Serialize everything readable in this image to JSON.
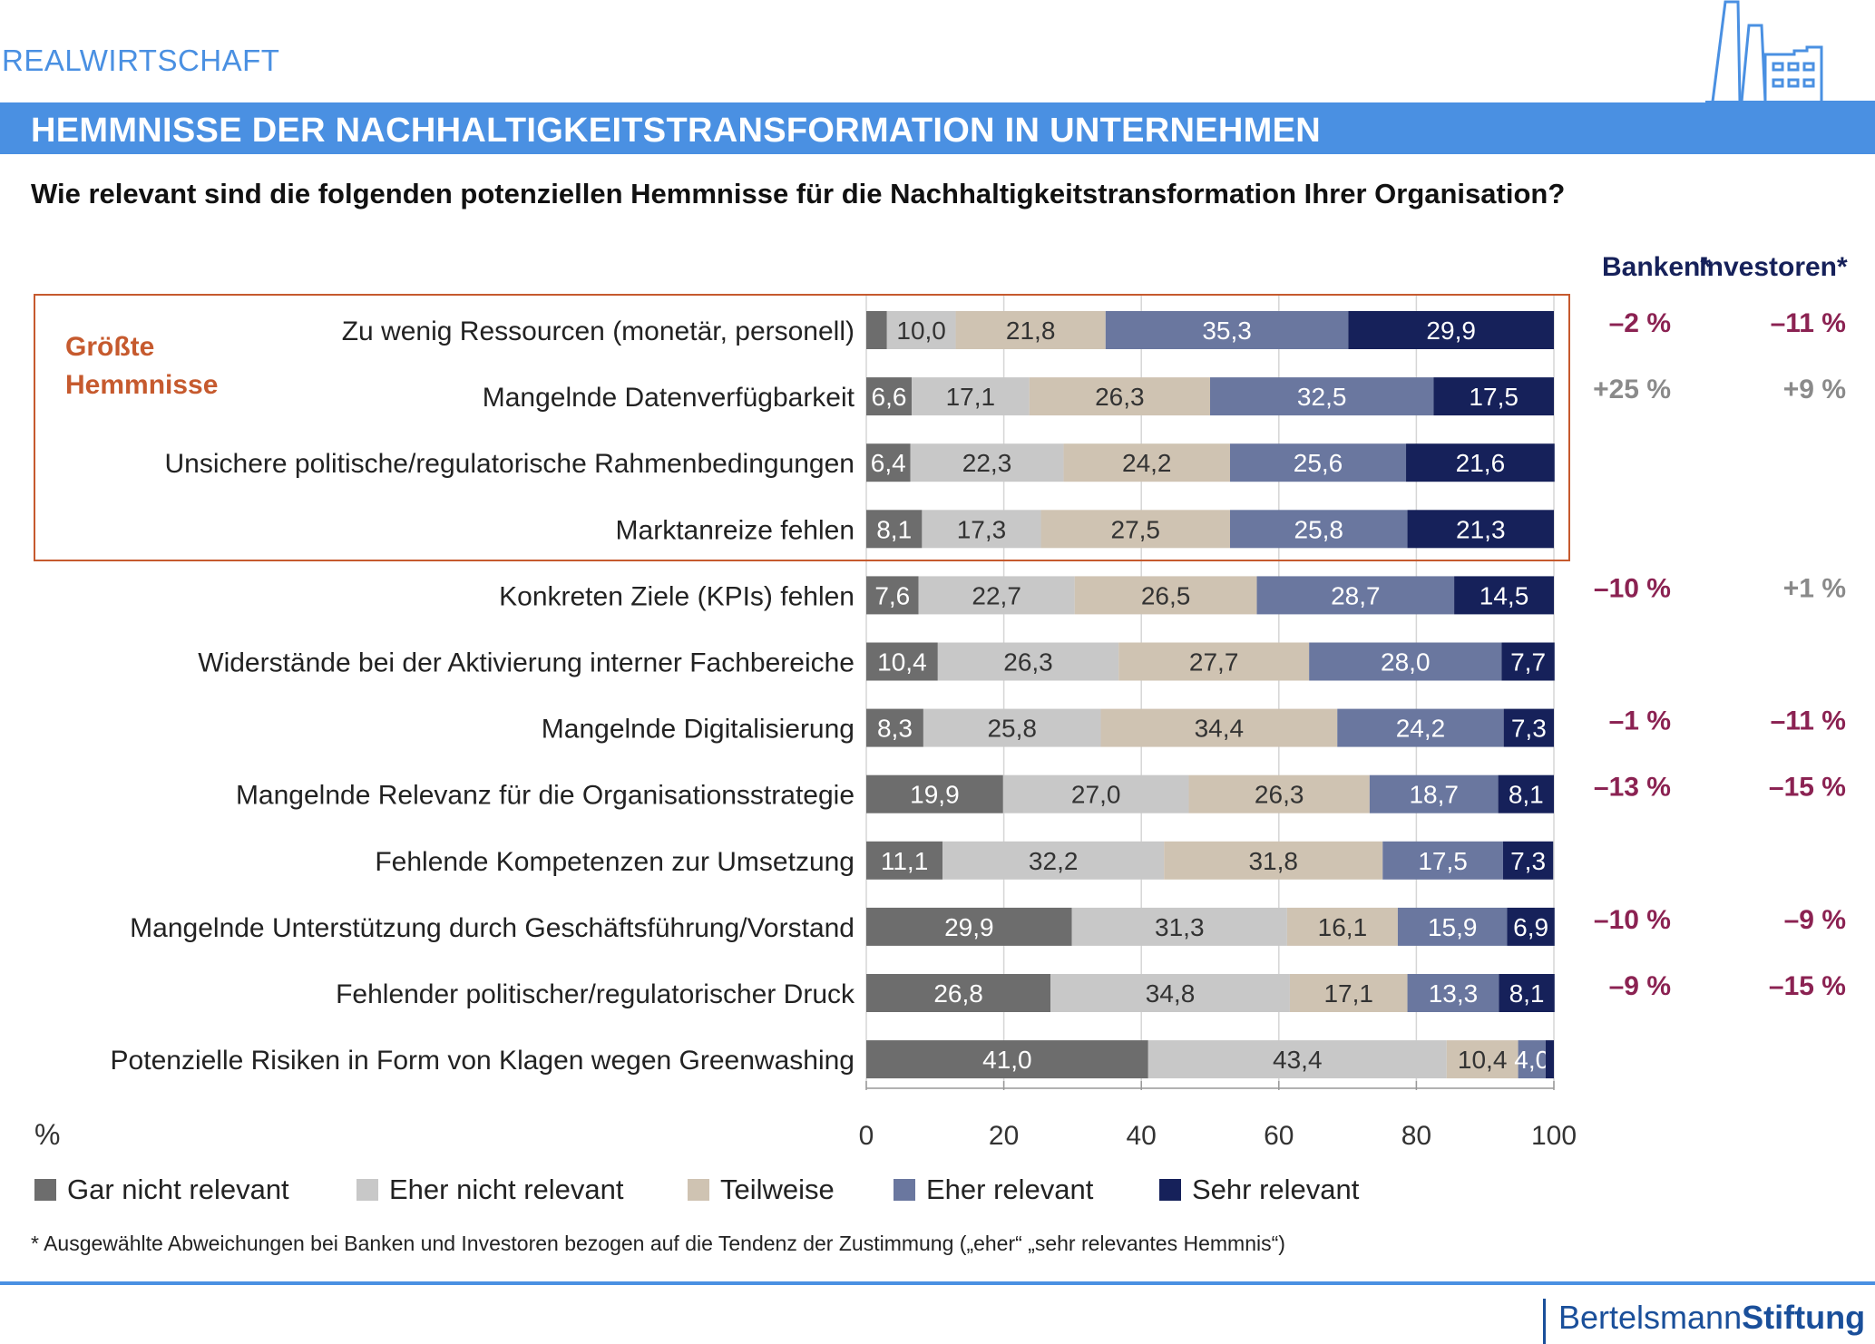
{
  "header": {
    "section": "REALWIRTSCHAFT",
    "title": "HEMMNISSE DER NACHHALTIGKEITSTRANSFORMATION IN UNTERNEHMEN",
    "question": "Wie relevant sind die folgenden potenziellen Hemmnisse für die Nachhaltigkeitstransformation Ihrer Organisation?"
  },
  "highlight": {
    "label_line1": "Größte",
    "label_line2": "Hemmnisse",
    "color": "#c65a2e"
  },
  "deviation_headers": {
    "banks": "Banken*",
    "investors": "Investoren*"
  },
  "footnote": "* Ausgewählte Abweichungen bei Banken und Investoren bezogen auf die Tendenz der Zustimmung („eher“ „sehr relevantes Hemmnis“)",
  "brand": {
    "part1": "Bertelsmann",
    "part2": "Stiftung"
  },
  "colors": {
    "gar_nicht": "#6d6d6d",
    "eher_nicht": "#c8c8c8",
    "teilweise": "#cfc3b2",
    "eher": "#6a779f",
    "sehr": "#16215a",
    "negative": "#8b2252",
    "positive": "#8a8a8a",
    "accent_blue": "#4a90e2"
  },
  "chart_data": {
    "type": "bar",
    "orientation": "horizontal",
    "stacked": true,
    "unit_label": "%",
    "xlim": [
      0,
      100
    ],
    "xticks": [
      "0",
      "20",
      "40",
      "60",
      "80",
      "100"
    ],
    "legend_position": "bottom",
    "grid": true,
    "categories": [
      "Zu wenig Ressourcen (monetär, personell)",
      "Mangelnde Datenverfügbarkeit",
      "Unsichere politische/regulatorische Rahmenbedingungen",
      "Marktanreize fehlen",
      "Konkreten Ziele (KPIs) fehlen",
      "Widerstände bei der Aktivierung interner Fachbereiche",
      "Mangelnde Digitalisierung",
      "Mangelnde Relevanz für die Organisationsstrategie",
      "Fehlende Kompetenzen zur Umsetzung",
      "Mangelnde Unterstützung durch Geschäftsführung/Vorstand",
      "Fehlender politischer/regulatorischer Druck",
      "Potenzielle Risiken in Form von Klagen wegen Greenwashing"
    ],
    "series": [
      {
        "name": "Gar nicht relevant",
        "color": "#6d6d6d",
        "values": [
          3.0,
          6.6,
          6.4,
          8.1,
          7.6,
          10.4,
          8.3,
          19.9,
          11.1,
          29.9,
          26.8,
          41.0
        ],
        "labels": [
          "",
          "6,6",
          "6,4",
          "8,1",
          "7,6",
          "10,4",
          "8,3",
          "19,9",
          "11,1",
          "29,9",
          "26,8",
          "41,0"
        ],
        "label_color": "#ffffff"
      },
      {
        "name": "Eher nicht relevant",
        "color": "#c8c8c8",
        "values": [
          10.0,
          17.1,
          22.3,
          17.3,
          22.7,
          26.3,
          25.8,
          27.0,
          32.2,
          31.3,
          34.8,
          43.4
        ],
        "labels": [
          "10,0",
          "17,1",
          "22,3",
          "17,3",
          "22,7",
          "26,3",
          "25,8",
          "27,0",
          "32,2",
          "31,3",
          "34,8",
          "43,4"
        ],
        "label_color": "#333333"
      },
      {
        "name": "Teilweise",
        "color": "#cfc3b2",
        "values": [
          21.8,
          26.3,
          24.2,
          27.5,
          26.5,
          27.7,
          34.4,
          26.3,
          31.8,
          16.1,
          17.1,
          10.4
        ],
        "labels": [
          "21,8",
          "26,3",
          "24,2",
          "27,5",
          "26,5",
          "27,7",
          "34,4",
          "26,3",
          "31,8",
          "16,1",
          "17,1",
          "10,4"
        ],
        "label_color": "#333333"
      },
      {
        "name": "Eher relevant",
        "color": "#6a779f",
        "values": [
          35.3,
          32.5,
          25.6,
          25.8,
          28.7,
          28.0,
          24.2,
          18.7,
          17.5,
          15.9,
          13.3,
          4.0
        ],
        "labels": [
          "35,3",
          "32,5",
          "25,6",
          "25,8",
          "28,7",
          "28,0",
          "24,2",
          "18,7",
          "17,5",
          "15,9",
          "13,3",
          "4,0"
        ],
        "label_color": "#ffffff"
      },
      {
        "name": "Sehr relevant",
        "color": "#16215a",
        "values": [
          29.9,
          17.5,
          21.6,
          21.3,
          14.5,
          7.7,
          7.3,
          8.1,
          7.3,
          6.9,
          8.1,
          1.2
        ],
        "labels": [
          "29,9",
          "17,5",
          "21,6",
          "21,3",
          "14,5",
          "7,7",
          "7,3",
          "8,1",
          "7,3",
          "6,9",
          "8,1",
          ""
        ],
        "label_color": "#ffffff"
      }
    ],
    "highlighted_rows": [
      0,
      1,
      2,
      3
    ],
    "deviations": {
      "banks": [
        "–2 %",
        "+25 %",
        "",
        "",
        "–10 %",
        "",
        "–1 %",
        "–13 %",
        "",
        "–10 %",
        "–9 %",
        ""
      ],
      "investors": [
        "–11 %",
        "+9 %",
        "",
        "",
        "+1 %",
        "",
        "–11 %",
        "–15 %",
        "",
        "–9 %",
        "–15 %",
        ""
      ]
    }
  }
}
